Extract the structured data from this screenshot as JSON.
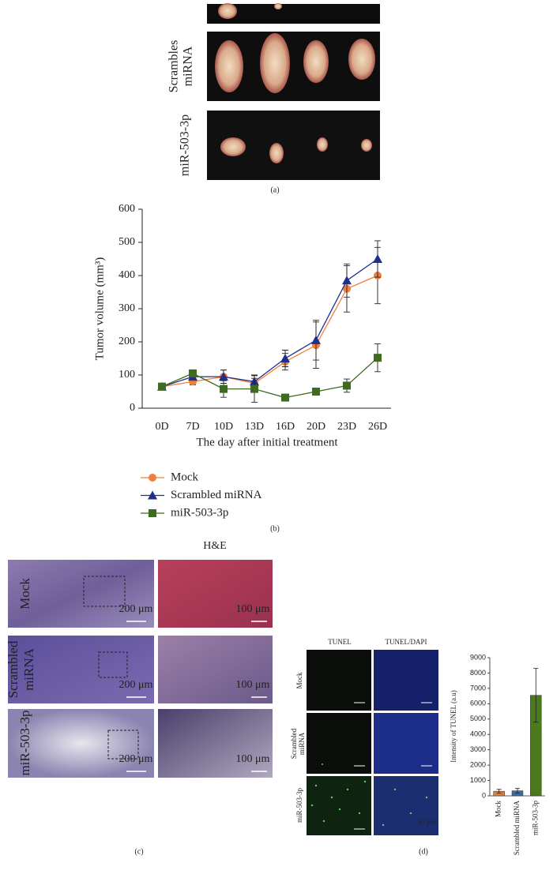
{
  "panel_a": {
    "row_labels": [
      [
        "Scrambles",
        "miRNA"
      ],
      [
        "miR-503-3p"
      ]
    ],
    "caption": "(a)"
  },
  "panel_b": {
    "caption": "(b)"
  },
  "panel_c": {
    "header": "H&E",
    "row_labels": [
      [
        "Mock"
      ],
      [
        "Scrambled",
        "miRNA"
      ],
      [
        "miR-503-3p"
      ]
    ],
    "scale_labels": [
      [
        "200 μm",
        "100 μm"
      ],
      [
        "200 μm",
        "100 μm"
      ],
      [
        "200 μm",
        "100 μm"
      ]
    ],
    "caption": "(c)"
  },
  "panel_d": {
    "headers": [
      "TUNEL",
      "TUNEL/DAPI"
    ],
    "row_labels": [
      [
        "Mock"
      ],
      [
        "Scrambled",
        "miRNA"
      ],
      [
        "miR-503-3p"
      ]
    ],
    "scale_label": "50 μm",
    "caption": "(d)"
  },
  "chart_data": [
    {
      "type": "line",
      "y_label": "Tumor volume (mm³)",
      "x_label": "The day after initial treatment",
      "categories": [
        "0D",
        "7D",
        "10D",
        "13D",
        "16D",
        "20D",
        "23D",
        "26D"
      ],
      "ylim": [
        0,
        600
      ],
      "yticks": [
        0,
        100,
        200,
        300,
        400,
        500,
        600
      ],
      "series": [
        {
          "name": "Mock",
          "color": "#f07f3c",
          "marker": "circle",
          "values": [
            65,
            80,
            95,
            75,
            140,
            190,
            360,
            400
          ],
          "errors": [
            5,
            10,
            20,
            15,
            25,
            70,
            70,
            85
          ]
        },
        {
          "name": "Scrambled miRNA",
          "color": "#1f2f8a",
          "marker": "triangle",
          "values": [
            65,
            95,
            95,
            80,
            150,
            205,
            385,
            450
          ],
          "errors": [
            5,
            5,
            20,
            20,
            25,
            60,
            50,
            55
          ]
        },
        {
          "name": "miR-503-3p",
          "color": "#3e6b1f",
          "marker": "square",
          "values": [
            65,
            105,
            58,
            58,
            32,
            50,
            68,
            152
          ],
          "errors": [
            5,
            5,
            25,
            40,
            5,
            5,
            20,
            42
          ]
        }
      ]
    },
    {
      "type": "bar",
      "y_label": "Intensity of TUNEL (a.u)",
      "categories": [
        "Mock",
        "Scrambled miRNA",
        "miR-503-3p"
      ],
      "values": [
        300,
        330,
        6550
      ],
      "errors": [
        120,
        150,
        1750
      ],
      "colors": [
        "#e07b39",
        "#3b6aa0",
        "#4a7a1d"
      ],
      "ylim": [
        0,
        9000
      ],
      "yticks": [
        0,
        1000,
        2000,
        3000,
        4000,
        5000,
        6000,
        7000,
        8000,
        9000
      ]
    }
  ]
}
